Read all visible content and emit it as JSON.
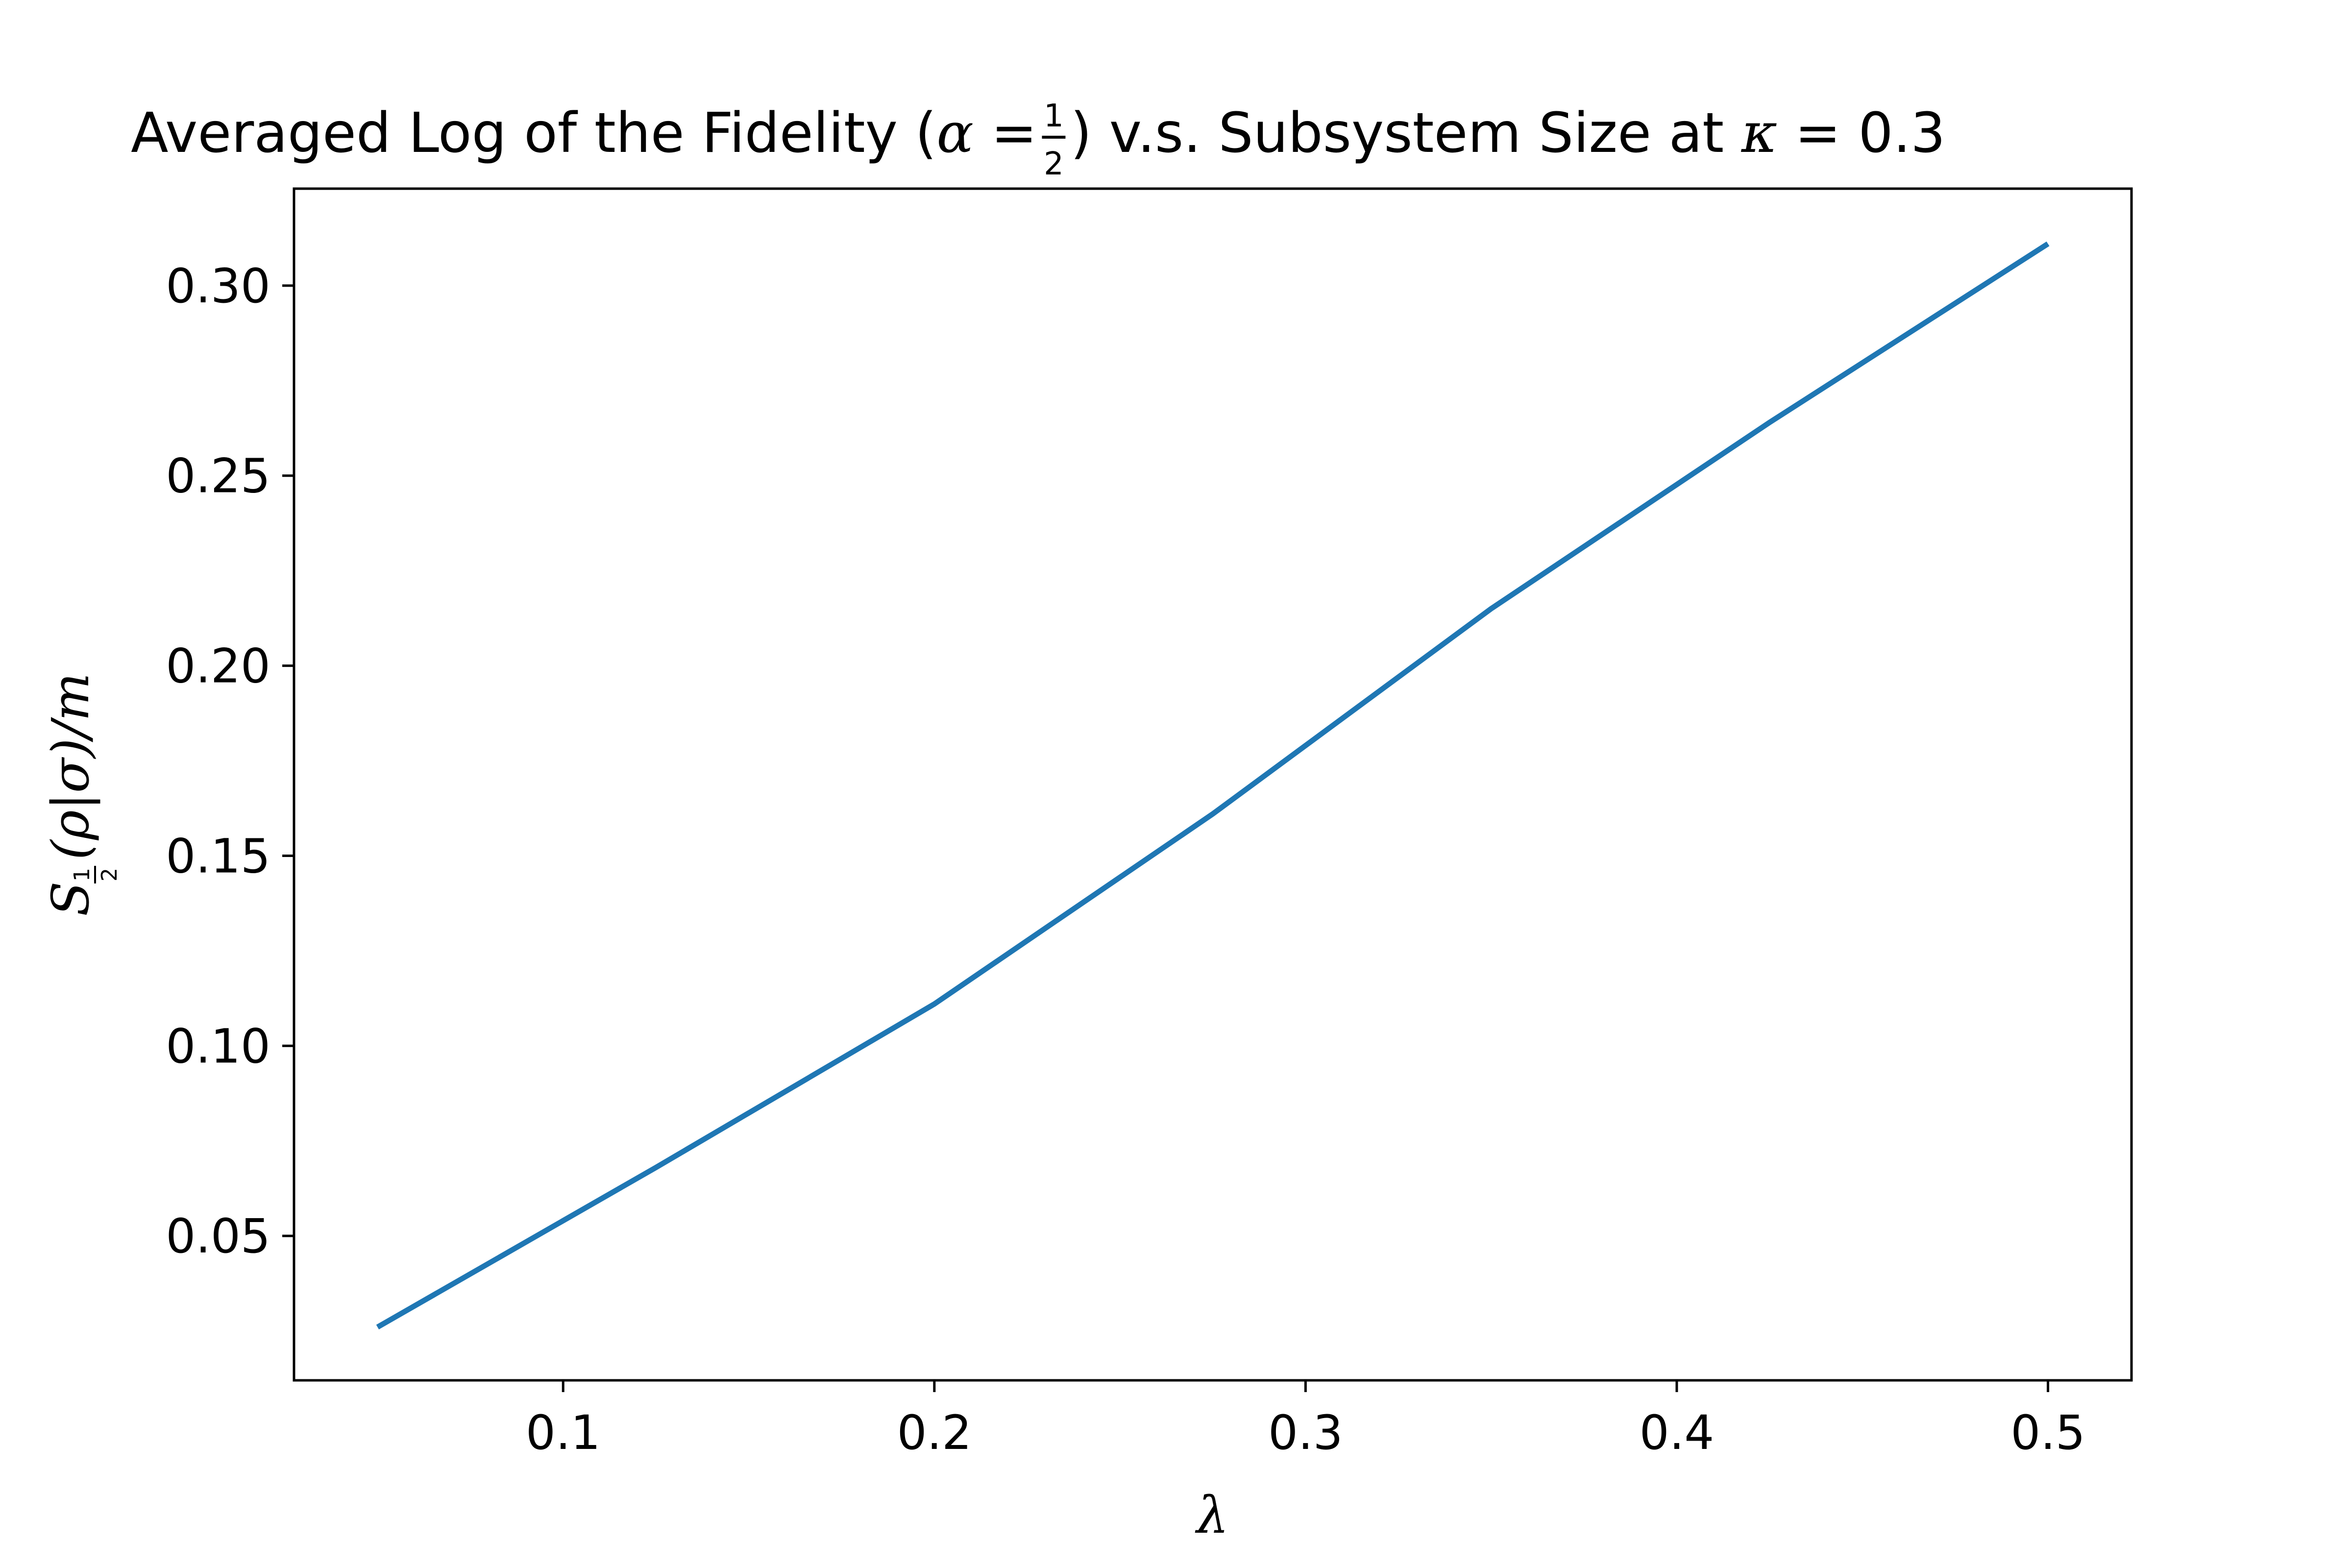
{
  "chart_data": {
    "type": "line",
    "title": {
      "prefix": "Averaged Log of the Fidelity (",
      "alpha": "α",
      "equals": " = ",
      "frac_num": "1",
      "frac_den": "2",
      "mid": ") v.s. Subsystem Size at ",
      "kappa": "κ",
      "suffix": " = 0.3"
    },
    "xlabel": "λ",
    "ylabel": {
      "main": "S",
      "sub_num": "1",
      "sub_den": "2",
      "rest": "(ρ|σ)/m"
    },
    "xlim": [
      0.0275,
      0.5225
    ],
    "ylim": [
      0.012,
      0.3255
    ],
    "xticks": [
      0.1,
      0.2,
      0.3,
      0.4,
      0.5
    ],
    "xtick_labels": [
      "0.1",
      "0.2",
      "0.3",
      "0.4",
      "0.5"
    ],
    "yticks": [
      0.05,
      0.1,
      0.15,
      0.2,
      0.25,
      0.3
    ],
    "ytick_labels": [
      "0.05",
      "0.10",
      "0.15",
      "0.20",
      "0.25",
      "0.30"
    ],
    "grid": false,
    "series": [
      {
        "color": "#1f77b4",
        "x": [
          0.05,
          0.125,
          0.2,
          0.275,
          0.35,
          0.425,
          0.5
        ],
        "y": [
          0.026,
          0.068,
          0.111,
          0.161,
          0.215,
          0.264,
          0.311
        ]
      }
    ]
  }
}
